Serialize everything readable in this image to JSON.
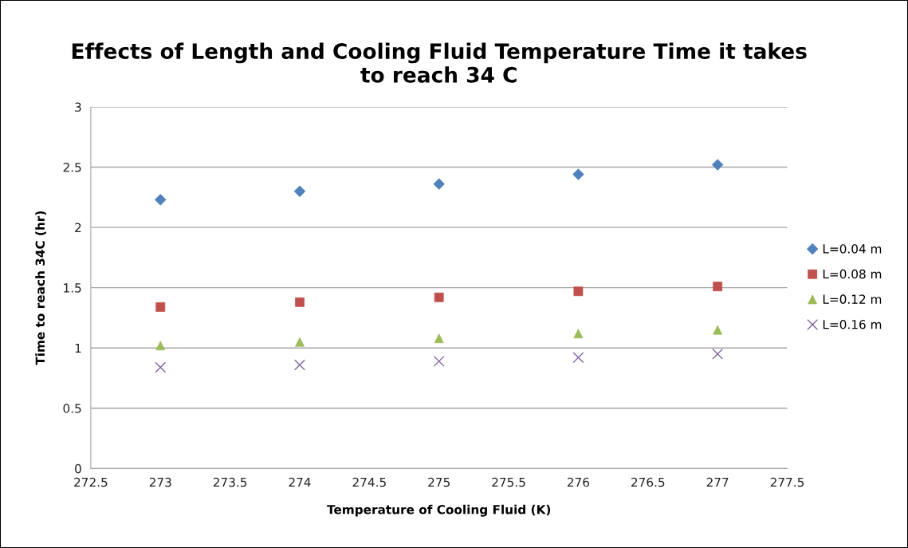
{
  "chart_data": {
    "type": "scatter",
    "title": "Effects of Length and Cooling Fluid Temperature Time it takes\nto reach 34 C",
    "xlabel": "Temperature of Cooling Fluid (K)",
    "ylabel": "Time to reach 34C (hr)",
    "x": [
      273,
      274,
      275,
      276,
      277
    ],
    "series": [
      {
        "name": "L=0.04 m",
        "color": "#4f81bd",
        "marker": "diamond",
        "values": [
          2.23,
          2.3,
          2.36,
          2.44,
          2.52
        ]
      },
      {
        "name": "L=0.08 m",
        "color": "#c0504d",
        "marker": "square",
        "values": [
          1.34,
          1.38,
          1.42,
          1.47,
          1.51
        ]
      },
      {
        "name": "L=0.12 m",
        "color": "#9bbb59",
        "marker": "triangle",
        "values": [
          1.02,
          1.05,
          1.08,
          1.12,
          1.15
        ]
      },
      {
        "name": "L=0.16 m",
        "color": "#8064a2",
        "marker": "cross",
        "values": [
          0.84,
          0.86,
          0.89,
          0.92,
          0.95
        ]
      }
    ],
    "xlim": [
      272.5,
      277.5
    ],
    "xticks": [
      272.5,
      273,
      273.5,
      274,
      274.5,
      275,
      275.5,
      276,
      276.5,
      277,
      277.5
    ],
    "ylim": [
      0,
      3
    ],
    "yticks": [
      0,
      0.5,
      1,
      1.5,
      2,
      2.5,
      3
    ],
    "grid": "y",
    "legend": "right"
  }
}
